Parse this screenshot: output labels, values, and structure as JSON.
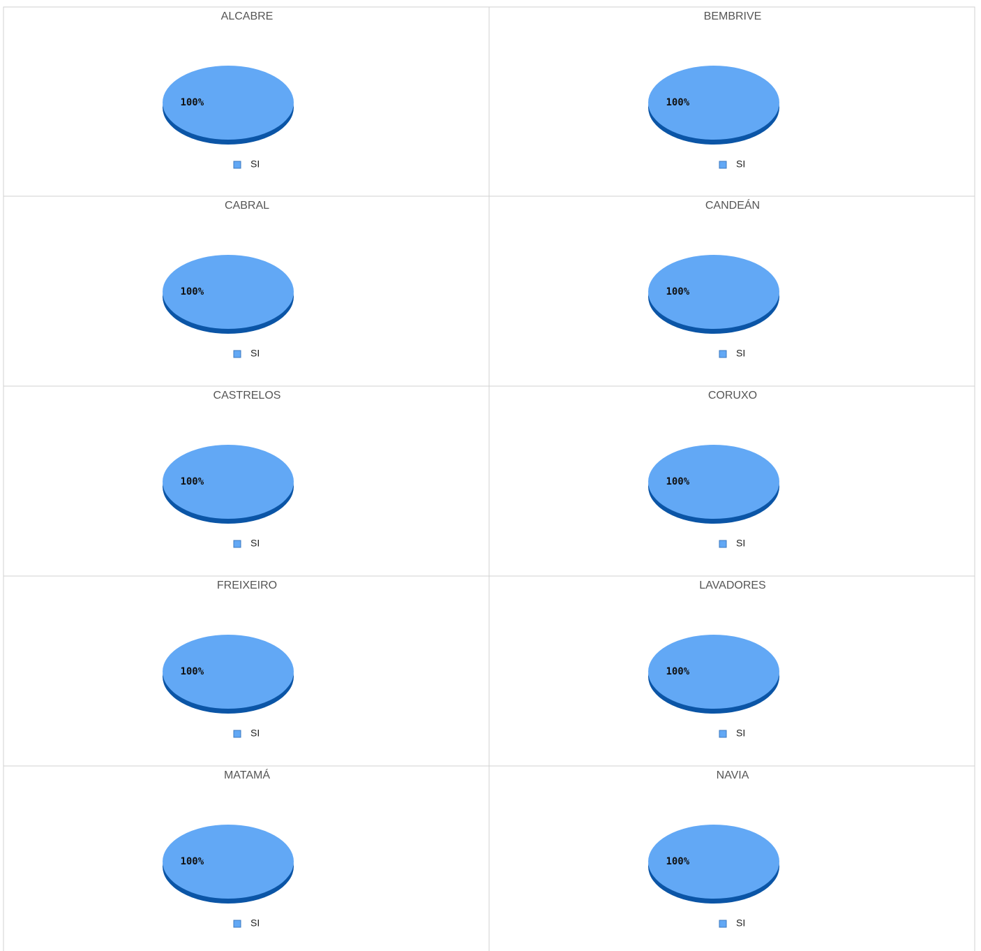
{
  "chart_data": [
    {
      "type": "pie",
      "title": "ALCABRE",
      "categories": [
        "SI"
      ],
      "values": [
        100
      ],
      "value_labels": [
        "100%"
      ],
      "colors": [
        "#62a8f5"
      ],
      "side_colors": [
        "#0b55a6"
      ],
      "legend": "bottom"
    },
    {
      "type": "pie",
      "title": "BEMBRIVE",
      "categories": [
        "SI"
      ],
      "values": [
        100
      ],
      "value_labels": [
        "100%"
      ],
      "colors": [
        "#62a8f5"
      ],
      "side_colors": [
        "#0b55a6"
      ],
      "legend": "bottom"
    },
    {
      "type": "pie",
      "title": "CABRAL",
      "categories": [
        "SI"
      ],
      "values": [
        100
      ],
      "value_labels": [
        "100%"
      ],
      "colors": [
        "#62a8f5"
      ],
      "side_colors": [
        "#0b55a6"
      ],
      "legend": "bottom"
    },
    {
      "type": "pie",
      "title": "CANDEÁN",
      "categories": [
        "SI"
      ],
      "values": [
        100
      ],
      "value_labels": [
        "100%"
      ],
      "colors": [
        "#62a8f5"
      ],
      "side_colors": [
        "#0b55a6"
      ],
      "legend": "bottom"
    },
    {
      "type": "pie",
      "title": "CASTRELOS",
      "categories": [
        "SI"
      ],
      "values": [
        100
      ],
      "value_labels": [
        "100%"
      ],
      "colors": [
        "#62a8f5"
      ],
      "side_colors": [
        "#0b55a6"
      ],
      "legend": "bottom"
    },
    {
      "type": "pie",
      "title": "CORUXO",
      "categories": [
        "SI"
      ],
      "values": [
        100
      ],
      "value_labels": [
        "100%"
      ],
      "colors": [
        "#62a8f5"
      ],
      "side_colors": [
        "#0b55a6"
      ],
      "legend": "bottom"
    },
    {
      "type": "pie",
      "title": "FREIXEIRO",
      "categories": [
        "SI"
      ],
      "values": [
        100
      ],
      "value_labels": [
        "100%"
      ],
      "colors": [
        "#62a8f5"
      ],
      "side_colors": [
        "#0b55a6"
      ],
      "legend": "bottom"
    },
    {
      "type": "pie",
      "title": "LAVADORES",
      "categories": [
        "SI"
      ],
      "values": [
        100
      ],
      "value_labels": [
        "100%"
      ],
      "colors": [
        "#62a8f5"
      ],
      "side_colors": [
        "#0b55a6"
      ],
      "legend": "bottom"
    },
    {
      "type": "pie",
      "title": "MATAMÁ",
      "categories": [
        "SI"
      ],
      "values": [
        100
      ],
      "value_labels": [
        "100%"
      ],
      "colors": [
        "#62a8f5"
      ],
      "side_colors": [
        "#0b55a6"
      ],
      "legend": "bottom"
    },
    {
      "type": "pie",
      "title": "NAVIA",
      "categories": [
        "SI"
      ],
      "values": [
        100
      ],
      "value_labels": [
        "100%"
      ],
      "colors": [
        "#62a8f5"
      ],
      "side_colors": [
        "#0b55a6"
      ],
      "legend": "bottom"
    }
  ]
}
